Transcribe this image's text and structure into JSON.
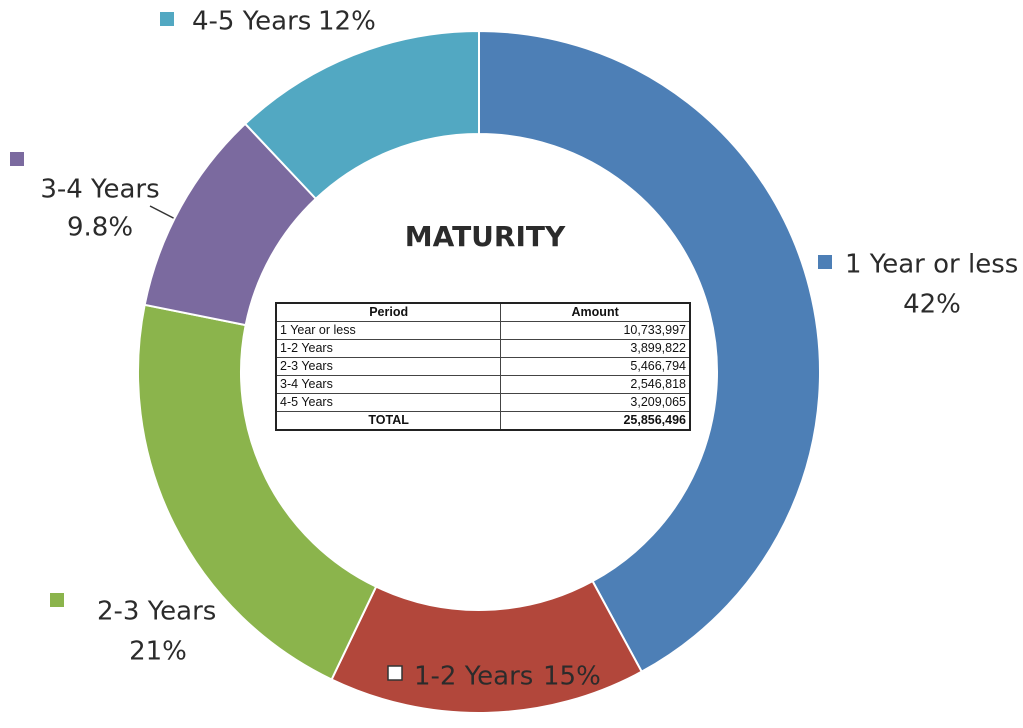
{
  "chart_data": {
    "type": "donut",
    "title": "MATURITY",
    "categories": [
      "1 Year or less",
      "1-2 Years",
      "2-3 Years",
      "3-4 Years",
      "4-5 Years"
    ],
    "values": [
      42,
      15,
      21,
      9.8,
      12
    ],
    "value_labels": [
      "42%",
      "15%",
      "21%",
      "9.8%",
      "12%"
    ],
    "colors": [
      "#4d7fb6",
      "#b2473b",
      "#8bb44c",
      "#7b6a9f",
      "#52a8c2"
    ],
    "table": {
      "columns": [
        "Period",
        "Amount"
      ],
      "rows": [
        [
          "1 Year or less",
          "10,733,997"
        ],
        [
          "1-2 Years",
          "3,899,822"
        ],
        [
          "2-3 Years",
          "5,466,794"
        ],
        [
          "3-4 Years",
          "2,546,818"
        ],
        [
          "4-5 Years",
          "3,209,065"
        ],
        [
          "TOTAL",
          "25,856,496"
        ]
      ]
    }
  }
}
